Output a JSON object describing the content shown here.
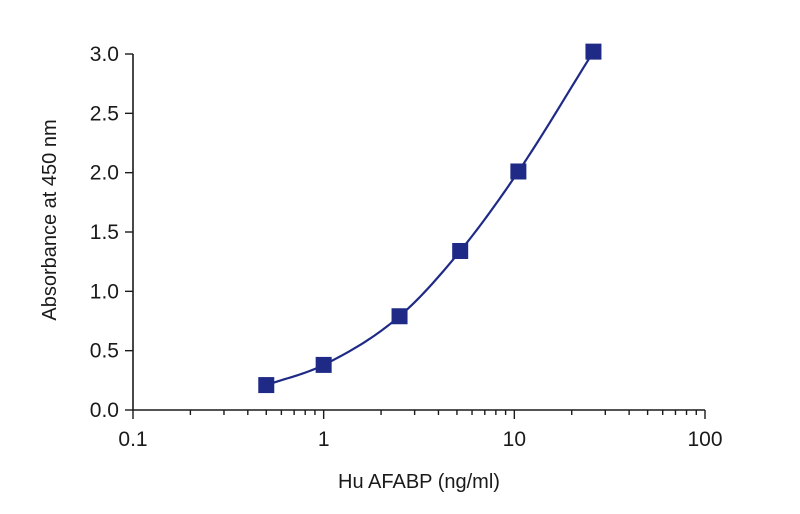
{
  "chart_data": {
    "type": "scatter",
    "title": "",
    "xlabel": "Hu AFABP (ng/ml)",
    "ylabel": "Absorbance at 450 nm",
    "xscale": "log",
    "xlim": [
      0.1,
      100
    ],
    "ylim": [
      0,
      3.0
    ],
    "x_ticks": [
      0.1,
      1,
      10,
      100
    ],
    "x_tick_labels": [
      "0.1",
      "1",
      "10",
      "100"
    ],
    "y_ticks": [
      0,
      0.5,
      1.0,
      1.5,
      2.0,
      2.5,
      3.0
    ],
    "y_tick_labels": [
      "0.0",
      "0.5",
      "1.0",
      "1.5",
      "2.0",
      "2.5",
      "3.0"
    ],
    "grid": false,
    "legend": "none",
    "marker": "square",
    "color": "#1f2a87",
    "fit": "smooth curve through points",
    "x": [
      0.5,
      1,
      2.5,
      5.2,
      10.5,
      26
    ],
    "y": [
      0.21,
      0.38,
      0.79,
      1.34,
      2.01,
      3.02
    ]
  }
}
